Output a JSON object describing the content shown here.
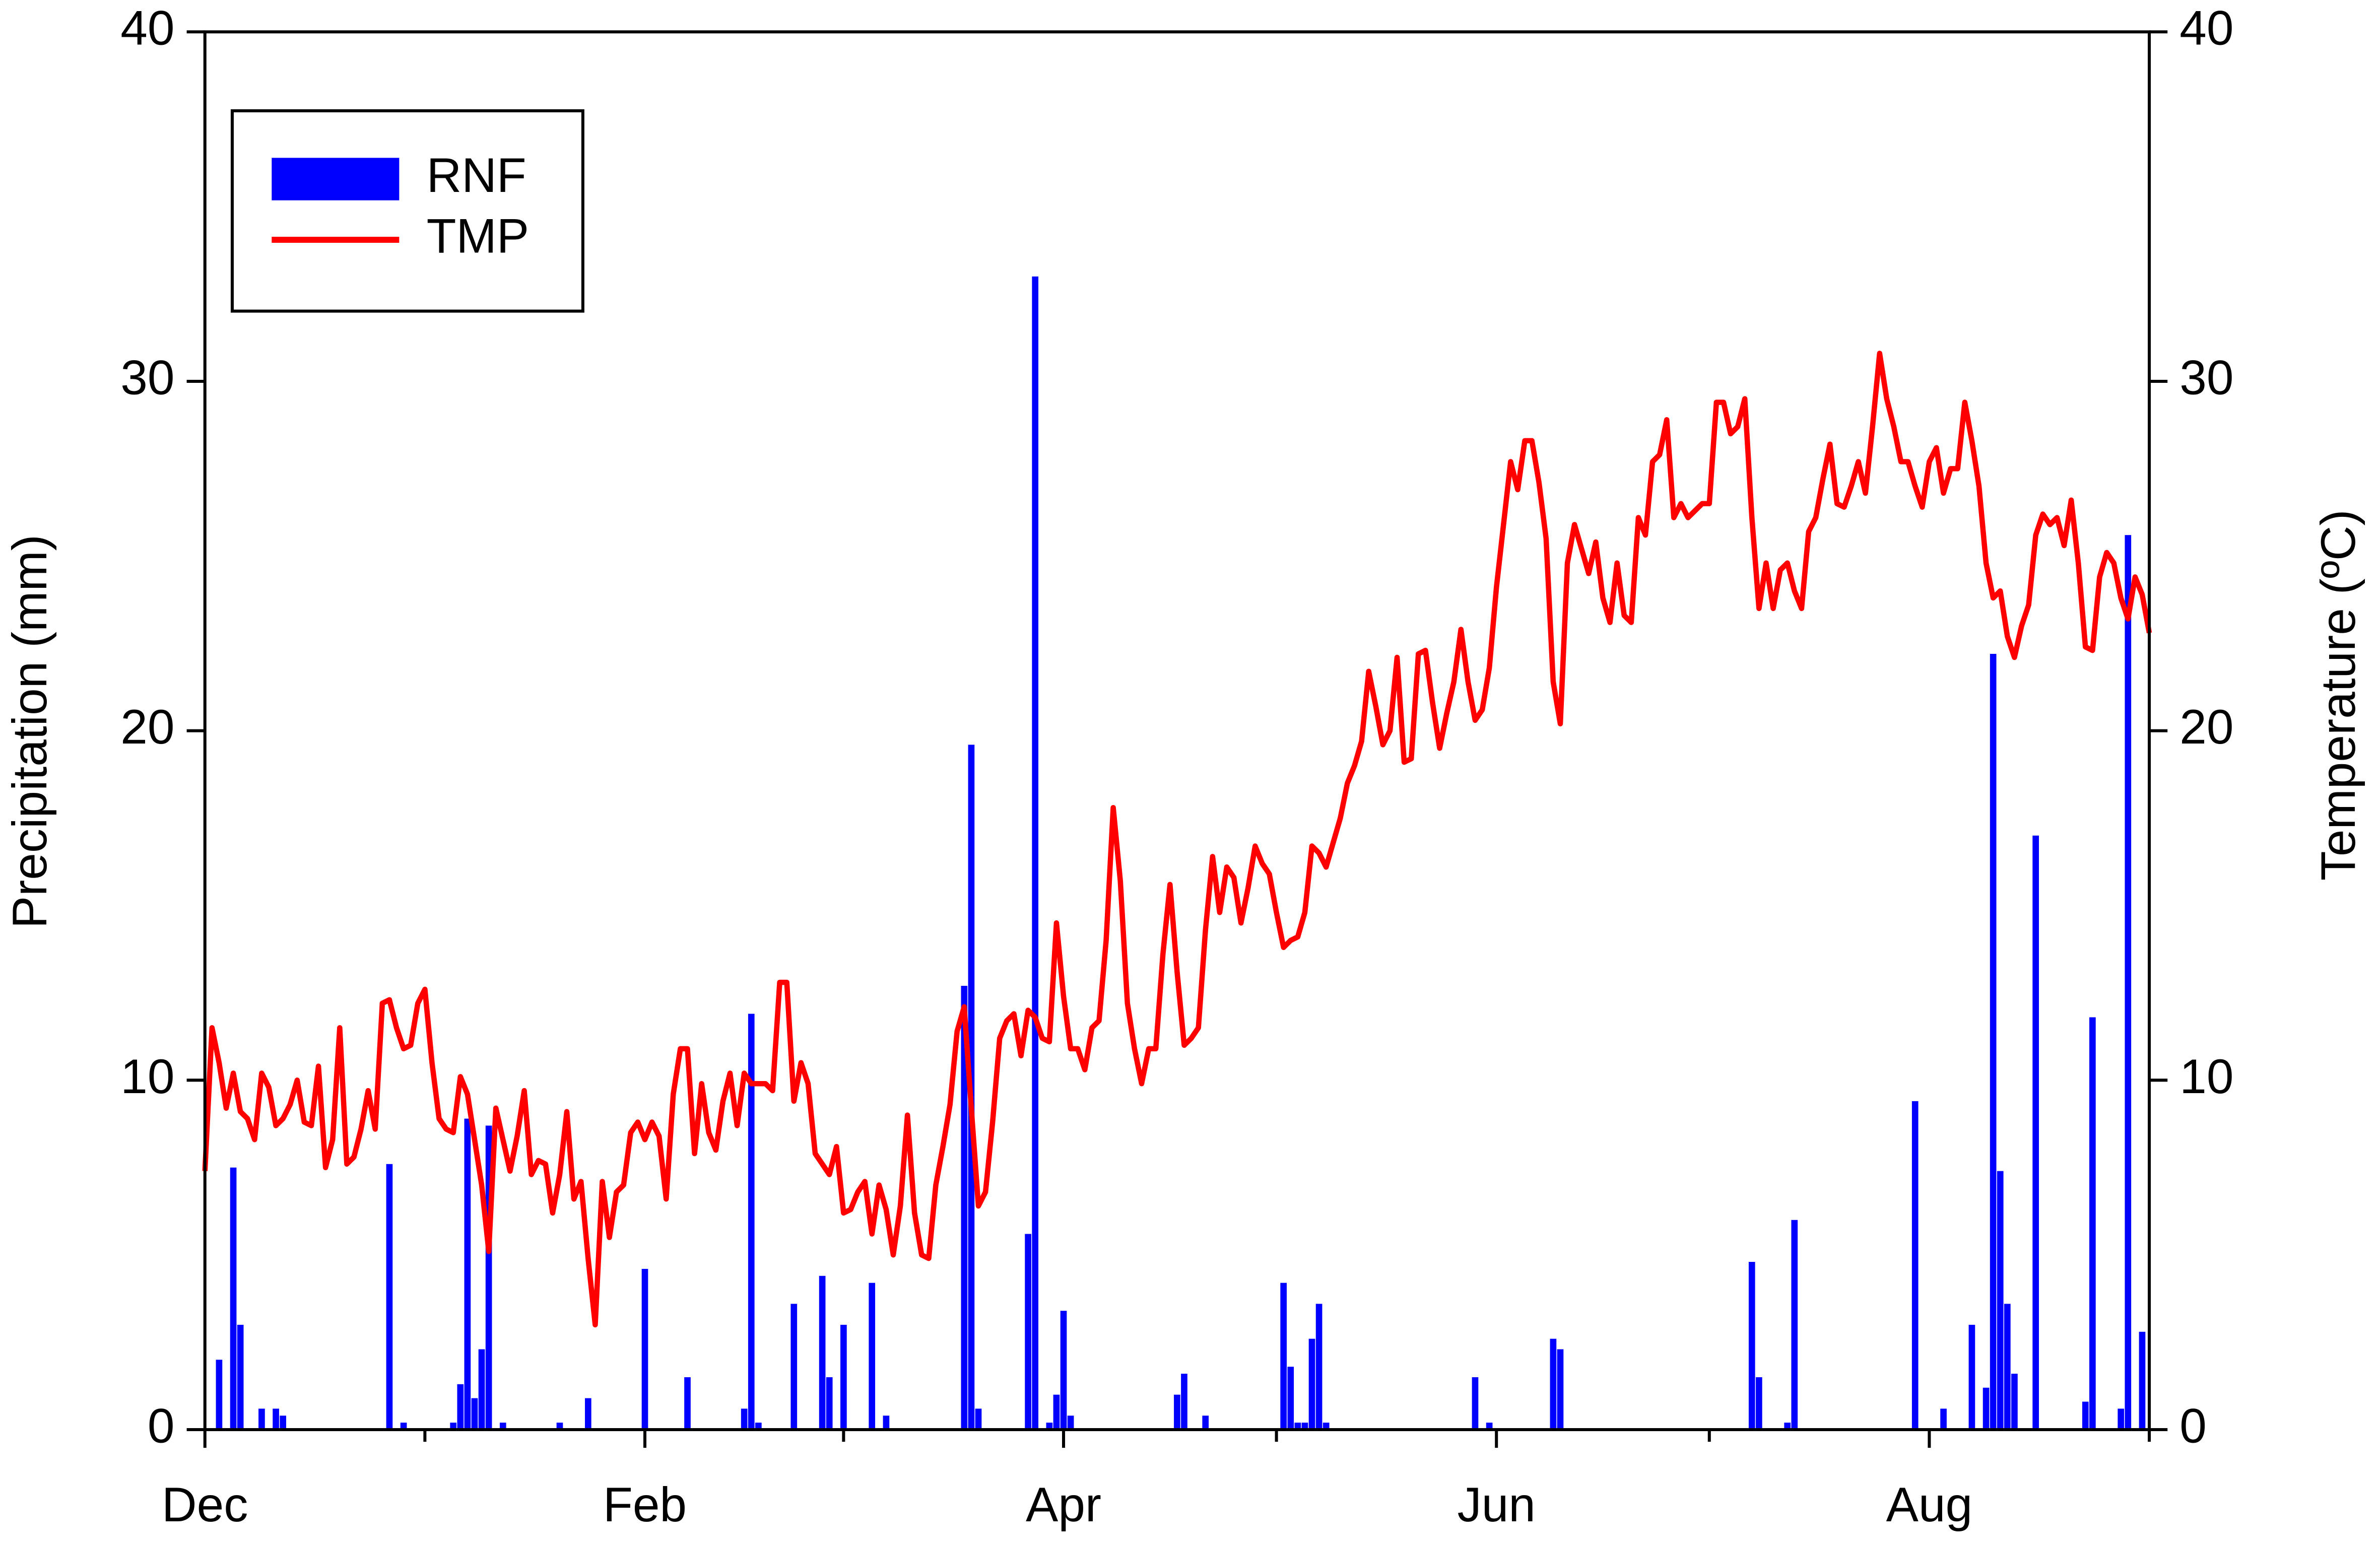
{
  "chart_data": {
    "type": "bar",
    "y_label": "Precipitation (mm)",
    "y2_label": "Temperature (ºC)",
    "xlim": [
      0,
      274
    ],
    "xticks": [
      {
        "value": 0,
        "label": "Dec"
      },
      {
        "value": 62,
        "label": "Feb"
      },
      {
        "value": 121,
        "label": "Apr"
      },
      {
        "value": 182,
        "label": "Jun"
      },
      {
        "value": 243,
        "label": "Aug"
      }
    ],
    "xminorticks": [
      31,
      90,
      151,
      212,
      274
    ],
    "ylim": [
      0,
      40
    ],
    "yticks": [
      0,
      10,
      20,
      30,
      40
    ],
    "y2lim": [
      0,
      40
    ],
    "y2ticks": [
      0,
      10,
      20,
      30,
      40
    ],
    "legend": "upper left",
    "series": [
      {
        "name": "RNF",
        "type": "bar",
        "color": "#0000ff",
        "x": [
          2,
          4,
          5,
          8,
          10,
          11,
          26,
          28,
          35,
          36,
          37,
          38,
          39,
          40,
          42,
          50,
          54,
          62,
          68,
          76,
          77,
          78,
          83,
          87,
          88,
          90,
          94,
          96,
          107,
          108,
          109,
          116,
          117,
          119,
          120,
          121,
          122,
          137,
          138,
          141,
          152,
          153,
          154,
          155,
          156,
          157,
          158,
          179,
          181,
          190,
          191,
          218,
          219,
          223,
          224,
          241,
          245,
          249,
          251,
          252,
          253,
          254,
          255,
          258,
          265,
          266,
          270,
          271,
          273
        ],
        "values": [
          2.0,
          7.5,
          3.0,
          0.6,
          0.6,
          0.4,
          7.6,
          0.2,
          0.2,
          1.3,
          8.9,
          0.9,
          2.3,
          8.7,
          0.2,
          0.2,
          0.9,
          4.6,
          1.5,
          0.6,
          11.9,
          0.2,
          3.6,
          4.4,
          1.5,
          3.0,
          4.2,
          0.4,
          12.7,
          19.6,
          0.6,
          5.6,
          33.0,
          0.2,
          1.0,
          3.4,
          0.4,
          1.0,
          1.6,
          0.4,
          4.2,
          1.8,
          0.2,
          0.2,
          2.6,
          3.6,
          0.2,
          1.5,
          0.2,
          2.6,
          2.3,
          4.8,
          1.5,
          0.2,
          6.0,
          9.4,
          0.6,
          3.0,
          1.2,
          22.2,
          7.4,
          3.6,
          1.6,
          17.0,
          0.8,
          11.8,
          0.6,
          25.6,
          2.8
        ]
      },
      {
        "name": "TMP",
        "type": "line",
        "color": "#ff0000",
        "axis": "y2",
        "x": [
          0,
          1,
          2,
          3,
          4,
          5,
          6,
          7,
          8,
          9,
          10,
          11,
          12,
          13,
          14,
          15,
          16,
          17,
          18,
          19,
          20,
          21,
          22,
          23,
          24,
          25,
          26,
          27,
          28,
          29,
          30,
          31,
          32,
          33,
          34,
          35,
          36,
          37,
          38,
          39,
          40,
          41,
          42,
          43,
          44,
          45,
          46,
          47,
          48,
          49,
          50,
          51,
          52,
          53,
          54,
          55,
          56,
          57,
          58,
          59,
          60,
          61,
          62,
          63,
          64,
          65,
          66,
          67,
          68,
          69,
          70,
          71,
          72,
          73,
          74,
          75,
          76,
          77,
          78,
          79,
          80,
          81,
          82,
          83,
          84,
          85,
          86,
          87,
          88,
          89,
          90,
          91,
          92,
          93,
          94,
          95,
          96,
          97,
          98,
          99,
          100,
          101,
          102,
          103,
          104,
          105,
          106,
          107,
          108,
          109,
          110,
          111,
          112,
          113,
          114,
          115,
          116,
          117,
          118,
          119,
          120,
          121,
          122,
          123,
          124,
          125,
          126,
          127,
          128,
          129,
          130,
          131,
          132,
          133,
          134,
          135,
          136,
          137,
          138,
          139,
          140,
          141,
          142,
          143,
          144,
          145,
          146,
          147,
          148,
          149,
          150,
          151,
          152,
          153,
          154,
          155,
          156,
          157,
          158,
          159,
          160,
          161,
          162,
          163,
          164,
          165,
          166,
          167,
          168,
          169,
          170,
          171,
          172,
          173,
          174,
          175,
          176,
          177,
          178,
          179,
          180,
          181,
          182,
          183,
          184,
          185,
          186,
          187,
          188,
          189,
          190,
          191,
          192,
          193,
          194,
          195,
          196,
          197,
          198,
          199,
          200,
          201,
          202,
          203,
          204,
          205,
          206,
          207,
          208,
          209,
          210,
          211,
          212,
          213,
          214,
          215,
          216,
          217,
          218,
          219,
          220,
          221,
          222,
          223,
          224,
          225,
          226,
          227,
          228,
          229,
          230,
          231,
          232,
          233,
          234,
          235,
          236,
          237,
          238,
          239,
          240,
          241,
          242,
          243,
          244,
          245,
          246,
          247,
          248,
          249,
          250,
          251,
          252,
          253,
          254,
          255,
          256,
          257,
          258,
          259,
          260,
          261,
          262,
          263,
          264,
          265,
          266,
          267,
          268,
          269,
          270,
          271,
          272,
          273,
          274
        ],
        "values": [
          7.4,
          11.5,
          10.5,
          9.2,
          10.2,
          9.1,
          8.9,
          8.3,
          10.2,
          9.8,
          8.7,
          8.9,
          9.3,
          10.0,
          8.8,
          8.7,
          10.4,
          7.5,
          8.3,
          11.5,
          7.6,
          7.8,
          8.6,
          9.7,
          8.6,
          12.2,
          12.3,
          11.5,
          10.9,
          11.0,
          12.2,
          12.6,
          10.5,
          8.9,
          8.6,
          8.5,
          10.1,
          9.6,
          8.3,
          7.0,
          5.1,
          9.2,
          8.3,
          7.4,
          8.4,
          9.7,
          7.3,
          7.7,
          7.6,
          6.2,
          7.3,
          9.1,
          6.6,
          7.1,
          4.9,
          3.0,
          7.1,
          5.5,
          6.8,
          7.0,
          8.5,
          8.8,
          8.3,
          8.8,
          8.4,
          6.6,
          9.6,
          10.9,
          10.9,
          7.9,
          9.9,
          8.5,
          8.0,
          9.4,
          10.2,
          8.7,
          10.2,
          9.9,
          9.9,
          9.9,
          9.7,
          12.8,
          12.8,
          9.4,
          10.5,
          9.9,
          7.9,
          7.6,
          7.3,
          8.1,
          6.2,
          6.3,
          6.8,
          7.1,
          5.6,
          7.0,
          6.3,
          5.0,
          6.4,
          9.0,
          6.2,
          5.0,
          4.9,
          7.0,
          8.1,
          9.3,
          11.4,
          12.1,
          9.2,
          6.4,
          6.8,
          8.8,
          11.2,
          11.7,
          11.9,
          10.7,
          12.0,
          11.8,
          11.2,
          11.1,
          14.5,
          12.4,
          10.9,
          10.9,
          10.3,
          11.5,
          11.7,
          14.0,
          17.8,
          15.7,
          12.2,
          10.9,
          9.9,
          10.9,
          10.9,
          13.6,
          15.6,
          13.1,
          11.0,
          11.2,
          11.5,
          14.3,
          16.4,
          14.8,
          16.1,
          15.8,
          14.5,
          15.5,
          16.7,
          16.2,
          15.9,
          14.8,
          13.8,
          14.0,
          14.1,
          14.8,
          16.7,
          16.5,
          16.1,
          16.8,
          17.5,
          18.5,
          19.0,
          19.7,
          21.7,
          20.7,
          19.6,
          20.0,
          22.1,
          19.1,
          19.2,
          22.2,
          22.3,
          20.8,
          19.5,
          20.5,
          21.4,
          22.9,
          21.4,
          20.3,
          20.6,
          21.8,
          24.1,
          25.9,
          27.7,
          26.9,
          28.3,
          28.3,
          27.1,
          25.5,
          21.4,
          20.2,
          24.8,
          25.9,
          25.2,
          24.5,
          25.4,
          23.8,
          23.1,
          24.8,
          23.3,
          23.1,
          26.1,
          25.6,
          27.7,
          27.9,
          28.9,
          26.1,
          26.5,
          26.1,
          26.3,
          26.5,
          26.5,
          29.4,
          29.4,
          28.5,
          28.7,
          29.5,
          26.1,
          23.5,
          24.8,
          23.5,
          24.6,
          24.8,
          24.0,
          23.5,
          25.7,
          26.1,
          27.2,
          28.2,
          26.5,
          26.4,
          27.0,
          27.7,
          26.8,
          28.7,
          30.8,
          29.5,
          28.7,
          27.7,
          27.7,
          27.0,
          26.4,
          27.7,
          28.1,
          26.8,
          27.5,
          27.5,
          29.4,
          28.3,
          27.0,
          24.8,
          23.8,
          24.0,
          22.7,
          22.1,
          23.0,
          23.6,
          25.6,
          26.2,
          25.9,
          26.1,
          25.3,
          26.6,
          24.8,
          22.4,
          22.3,
          24.4,
          25.1,
          24.8,
          23.8,
          23.2,
          24.4,
          23.9,
          22.8
        ]
      }
    ]
  }
}
